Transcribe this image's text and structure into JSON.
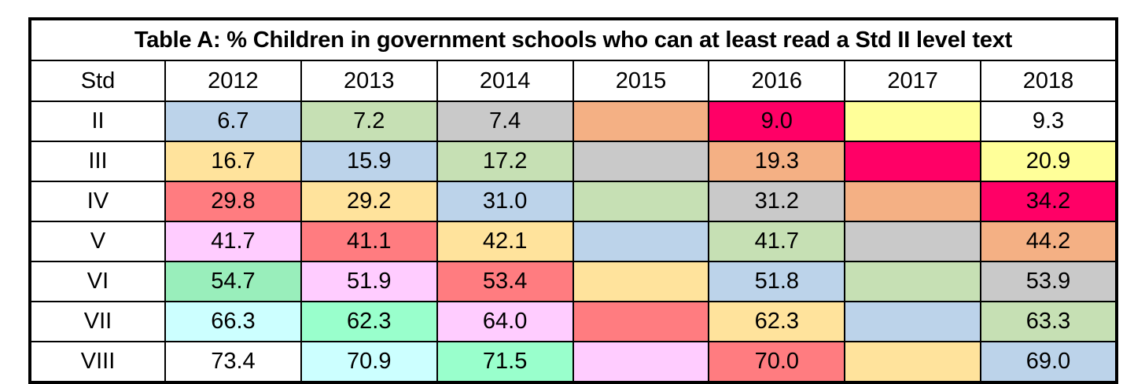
{
  "chart_data": {
    "type": "table",
    "title": "Table A: % Children in government schools who can at least read a Std II level text",
    "row_header": "Std",
    "columns": [
      "2012",
      "2013",
      "2014",
      "2015",
      "2016",
      "2017",
      "2018"
    ],
    "rows": [
      {
        "label": "II",
        "values": [
          "6.7",
          "7.2",
          "7.4",
          "",
          "9.0",
          "",
          "9.3"
        ],
        "colors": [
          "#bcd3ea",
          "#c6e0b4",
          "#c9c9c9",
          "#f4b084",
          "#ff0066",
          "#ffff99",
          "#ffffff"
        ]
      },
      {
        "label": "III",
        "values": [
          "16.7",
          "15.9",
          "17.2",
          "",
          "19.3",
          "",
          "20.9"
        ],
        "colors": [
          "#ffe39c",
          "#bcd3ea",
          "#c6e0b4",
          "#c9c9c9",
          "#f4b084",
          "#ff0066",
          "#ffff99"
        ]
      },
      {
        "label": "IV",
        "values": [
          "29.8",
          "29.2",
          "31.0",
          "",
          "31.2",
          "",
          "34.2"
        ],
        "colors": [
          "#ff7c80",
          "#ffe39c",
          "#bcd3ea",
          "#c6e0b4",
          "#c9c9c9",
          "#f4b084",
          "#ff0066"
        ]
      },
      {
        "label": "V",
        "values": [
          "41.7",
          "41.1",
          "42.1",
          "",
          "41.7",
          "",
          "44.2"
        ],
        "colors": [
          "#ffccff",
          "#ff7c80",
          "#ffe39c",
          "#bcd3ea",
          "#c6e0b4",
          "#c9c9c9",
          "#f4b084"
        ]
      },
      {
        "label": "VI",
        "values": [
          "54.7",
          "51.9",
          "53.4",
          "",
          "51.8",
          "",
          "53.9"
        ],
        "colors": [
          "#99eebb",
          "#ffccff",
          "#ff7c80",
          "#ffe39c",
          "#bcd3ea",
          "#c6e0b4",
          "#c9c9c9"
        ]
      },
      {
        "label": "VII",
        "values": [
          "66.3",
          "62.3",
          "64.0",
          "",
          "62.3",
          "",
          "63.3"
        ],
        "colors": [
          "#ccffff",
          "#99ffcc",
          "#ffccff",
          "#ff7c80",
          "#ffe39c",
          "#bcd3ea",
          "#c6e0b4"
        ]
      },
      {
        "label": "VIII",
        "values": [
          "73.4",
          "70.9",
          "71.5",
          "",
          "70.0",
          "",
          "69.0"
        ],
        "colors": [
          "#ffffff",
          "#ccffff",
          "#99ffcc",
          "#ffccff",
          "#ff7c80",
          "#ffe39c",
          "#bcd3ea"
        ]
      }
    ]
  }
}
